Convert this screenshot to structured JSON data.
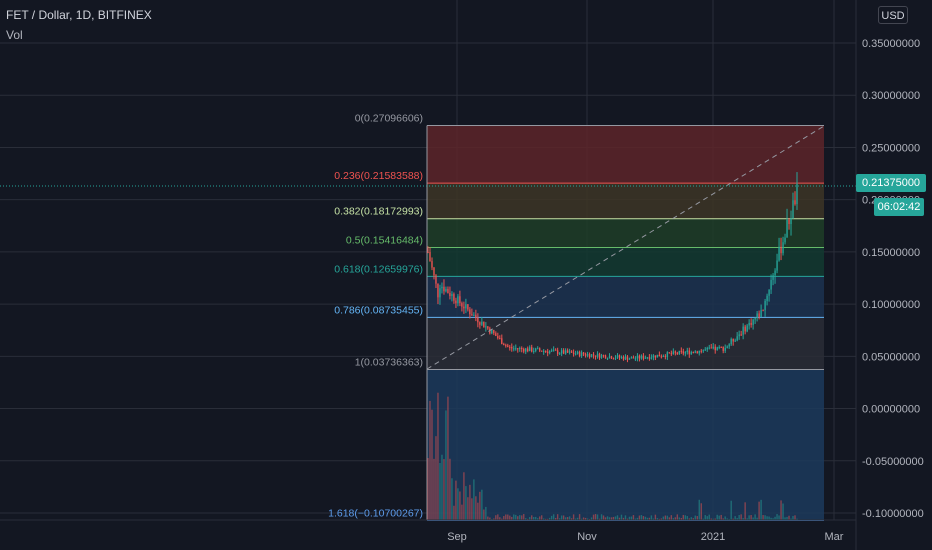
{
  "header": {
    "title": "FET / Dollar, 1D, BITFINEX",
    "vol_label": "Vol"
  },
  "currency_button": "USD",
  "last_price_tag": "0.21375000",
  "countdown_tag": "06:02:42",
  "price_axis_labels": [
    "0.35000000",
    "0.30000000",
    "0.25000000",
    "0.20000000",
    "0.15000000",
    "0.10000000",
    "0.05000000",
    "0.00000000",
    "-0.05000000",
    "-0.10000000"
  ],
  "time_axis_labels": [
    "Sep",
    "Nov",
    "2021",
    "Mar"
  ],
  "fib_levels": [
    {
      "label": "0(0.27096606)",
      "price": 0.27096606,
      "color": "#9598a1",
      "fill": "#5d2429"
    },
    {
      "label": "0.236(0.21583588)",
      "price": 0.21583588,
      "color": "#f05350",
      "fill": "#3d3526"
    },
    {
      "label": "0.382(0.18172993)",
      "price": 0.18172993,
      "color": "#c5e1a5",
      "fill": "#1f3d27"
    },
    {
      "label": "0.5(0.15416484)",
      "price": 0.15416484,
      "color": "#66bb6a",
      "fill": "#133a30"
    },
    {
      "label": "0.618(0.12659976)",
      "price": 0.12659976,
      "color": "#26a69a",
      "fill": "#1c3350"
    },
    {
      "label": "0.786(0.08735455)",
      "price": 0.08735455,
      "color": "#64b5f6",
      "fill": "#2a2d36"
    },
    {
      "label": "1(0.03736363)",
      "price": 0.03736363,
      "color": "#9598a1",
      "fill": "#1c3a5c"
    },
    {
      "label": "1.618(−0.10700267)",
      "price": -0.10700267,
      "color": "#5d9cec",
      "fill": null
    }
  ],
  "colors": {
    "up": "#26a69a",
    "down": "#ef5350",
    "background": "#131722",
    "grid": "#2a2e39"
  }
}
